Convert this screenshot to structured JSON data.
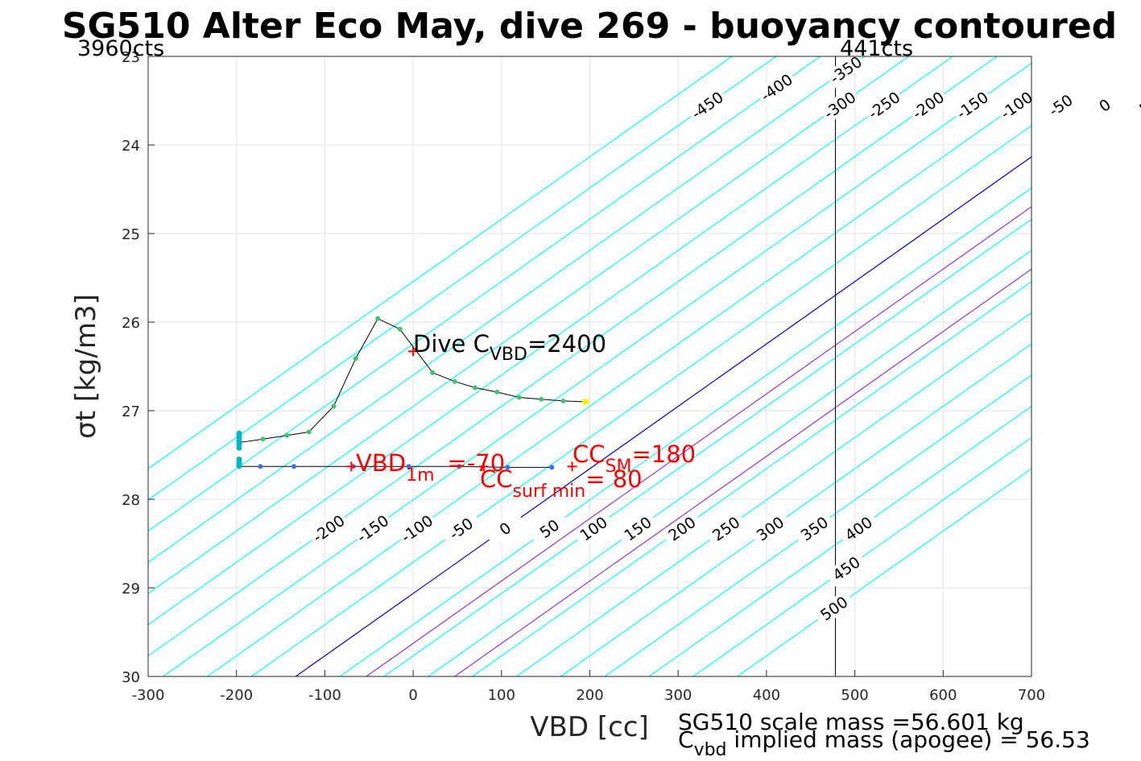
{
  "chart_data": {
    "type": "line",
    "title": "SG510 Alter Eco May, dive 269 - buoyancy contoured",
    "xlabel": "VBD [cc]",
    "ylabel": "σt [kg/m3]",
    "xlim": [
      -300,
      700
    ],
    "ylim": [
      23,
      30
    ],
    "y_reversed": true,
    "grid": true,
    "x_ticks": [
      "-300",
      "-200",
      "-100",
      "0",
      "100",
      "200",
      "300",
      "400",
      "500",
      "600",
      "700"
    ],
    "y_ticks": [
      "23",
      "24",
      "25",
      "26",
      "27",
      "28",
      "29",
      "30"
    ],
    "contours": {
      "levels": [
        -500,
        -450,
        -400,
        -350,
        -300,
        -250,
        -200,
        -150,
        -100,
        -50,
        0,
        50,
        100,
        150,
        200,
        250,
        300,
        350,
        400,
        450,
        500
      ],
      "slope_cc_per_unit": 142,
      "zero_at": {
        "vbd": -133,
        "sigma": 30
      },
      "highlight": {
        "0": "#0000cc",
        "80": "#9933cc",
        "180": "#9933cc"
      },
      "color": "#00ffff",
      "top_labels": [
        -450,
        -400,
        -350,
        -300,
        -250,
        -200,
        -150,
        -100,
        -50,
        0,
        50,
        100,
        150,
        200,
        250,
        300,
        350,
        400,
        450,
        500
      ],
      "bottom_labels": [
        -200,
        -150,
        -100,
        -50,
        0,
        50,
        100,
        150,
        200,
        250,
        300,
        350,
        400,
        450,
        500
      ]
    },
    "pump_limits": {
      "min_vbd": -300,
      "min_label": "3960cts",
      "max_vbd": 478,
      "max_label": "441cts"
    },
    "dive_series": {
      "color": "#3ec46d",
      "points": [
        [
          195,
          26.9
        ],
        [
          170,
          26.89
        ],
        [
          145,
          26.87
        ],
        [
          120,
          26.85
        ],
        [
          95,
          26.79
        ],
        [
          70,
          26.74
        ],
        [
          47,
          26.67
        ],
        [
          22,
          26.57
        ],
        [
          -15,
          26.08
        ],
        [
          -40,
          25.96
        ],
        [
          -65,
          26.41
        ],
        [
          -90,
          26.95
        ],
        [
          -118,
          27.24
        ],
        [
          -143,
          27.28
        ],
        [
          -170,
          27.32
        ],
        [
          -197,
          27.36
        ],
        [
          -197,
          27.32
        ],
        [
          -197,
          27.28
        ],
        [
          -197,
          27.25
        ]
      ],
      "end_point": [
        195,
        26.9
      ],
      "end_color": "#ffee00"
    },
    "climb_series": {
      "color": "#3f6fe8",
      "points": [
        [
          -197,
          27.63
        ],
        [
          -173,
          27.63
        ],
        [
          -135,
          27.63
        ],
        [
          -68,
          27.63
        ],
        [
          -5,
          27.63
        ],
        [
          52,
          27.63
        ],
        [
          107,
          27.64
        ],
        [
          157,
          27.64
        ]
      ],
      "cyan_points": [
        [
          -197,
          27.26
        ],
        [
          -197,
          27.3
        ],
        [
          -197,
          27.34
        ],
        [
          -197,
          27.38
        ],
        [
          -197,
          27.42
        ],
        [
          -197,
          27.55
        ],
        [
          -197,
          27.59
        ],
        [
          -197,
          27.62
        ]
      ],
      "cyan_color": "#00b5c8"
    },
    "markers": [
      {
        "vbd": 0,
        "sigma": 26.33,
        "color": "#ff0000"
      },
      {
        "vbd": -70,
        "sigma": 27.63,
        "color": "#ff0000"
      },
      {
        "vbd": 80,
        "sigma": 27.63,
        "color": "#ff0000"
      },
      {
        "vbd": 180,
        "sigma": 27.63,
        "color": "#ff0000"
      }
    ],
    "annotations": {
      "dive_cvbd_main": "Dive C",
      "dive_cvbd_sub": "VBD",
      "dive_cvbd_value": "=2400",
      "vbd1m_main": "VBD",
      "vbd1m_sub": "1m",
      "vbd1m_value": "=-70",
      "ccsm_main": "CC",
      "ccsm_sub": "SM",
      "ccsm_value": "=180",
      "ccsurf_main": "CC",
      "ccsurf_sub": "surf min",
      "ccsurf_value": "= 80"
    },
    "footer": {
      "line1": "SG510 scale mass =56.601 kg",
      "line2_main": "C",
      "line2_sub": "vbd",
      "line2_rest": " implied mass (apogee) = 56.53"
    }
  }
}
